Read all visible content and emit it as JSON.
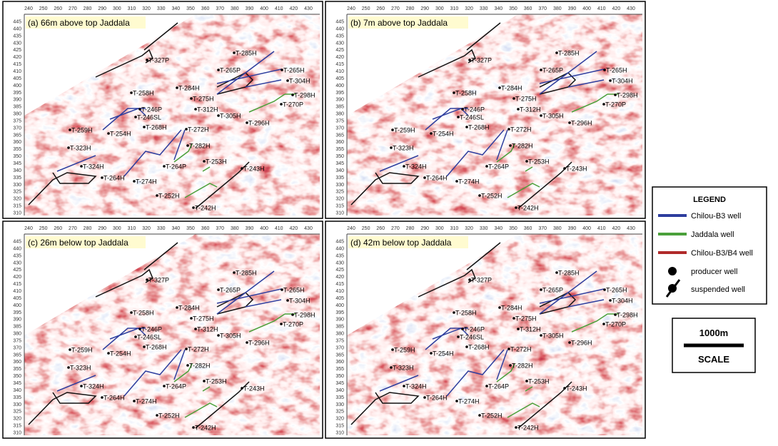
{
  "panels": [
    {
      "title": "(a) 66m above top Jaddala"
    },
    {
      "title": "(b) 7m above top Jaddala"
    },
    {
      "title": "(c) 26m below top Jaddala"
    },
    {
      "title": "(d) 42m below top Jaddala"
    }
  ],
  "x_axis_labels": [
    240,
    250,
    260,
    270,
    280,
    290,
    300,
    310,
    320,
    330,
    340,
    350,
    360,
    370,
    380,
    390,
    400,
    410,
    420,
    430
  ],
  "y_axis_labels": [
    445,
    440,
    435,
    430,
    425,
    420,
    415,
    410,
    405,
    400,
    395,
    390,
    385,
    380,
    375,
    370,
    365,
    360,
    355,
    350,
    345,
    340,
    335,
    330,
    325,
    320,
    315,
    310
  ],
  "wells": [
    "T-327P",
    "T-285H",
    "T-265P",
    "T-265H",
    "T-284H",
    "T-304H",
    "T-258H",
    "T-275H",
    "T-298H",
    "T-312H",
    "T-246P",
    "T-246SL",
    "T-270P",
    "T-305H",
    "T-268H",
    "T-272H",
    "T-296H",
    "T-259H",
    "T-254H",
    "T-323H",
    "T-282H",
    "T-253H",
    "T-324H",
    "T-264P",
    "T-243H",
    "T-264H",
    "T-274H",
    "T-252H",
    "T-242H"
  ],
  "legend": {
    "title": "LEGEND",
    "items": [
      "Chilou-B3 well",
      "Jaddala well",
      "Chilou-B3/B4 well",
      "producer well",
      "suspended well"
    ]
  },
  "scale": {
    "distance": "1000m",
    "label": "SCALE"
  }
}
